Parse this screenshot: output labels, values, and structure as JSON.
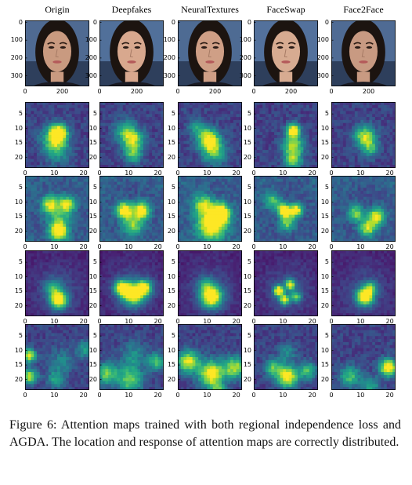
{
  "figure": {
    "columns": [
      {
        "title": "Origin"
      },
      {
        "title": "Deepfakes"
      },
      {
        "title": "NeuralTextures"
      },
      {
        "title": "FaceSwap"
      },
      {
        "title": "Face2Face"
      }
    ],
    "rows": [
      {
        "kind": "face-image",
        "yticks": [
          "0",
          "100",
          "200",
          "300"
        ],
        "xticks": [
          "0",
          "200"
        ]
      },
      {
        "kind": "attention-map",
        "map_index": 1,
        "yticks": [
          "5",
          "10",
          "15",
          "20"
        ],
        "xticks": [
          "0",
          "10",
          "20"
        ]
      },
      {
        "kind": "attention-map",
        "map_index": 2,
        "yticks": [
          "5",
          "10",
          "15",
          "20"
        ],
        "xticks": [
          "0",
          "10",
          "20"
        ]
      },
      {
        "kind": "attention-map",
        "map_index": 3,
        "yticks": [
          "5",
          "10",
          "15",
          "20"
        ],
        "xticks": [
          "0",
          "10",
          "20"
        ]
      },
      {
        "kind": "attention-map",
        "map_index": 4,
        "yticks": [
          "5",
          "10",
          "15",
          "20"
        ],
        "xticks": [
          "0",
          "10",
          "20"
        ]
      }
    ],
    "colormap": "viridis"
  },
  "caption": {
    "text": "Figure 6:  Attention maps trained with both regional independence loss and AGDA. The location and response of attention maps are correctly distributed."
  }
}
